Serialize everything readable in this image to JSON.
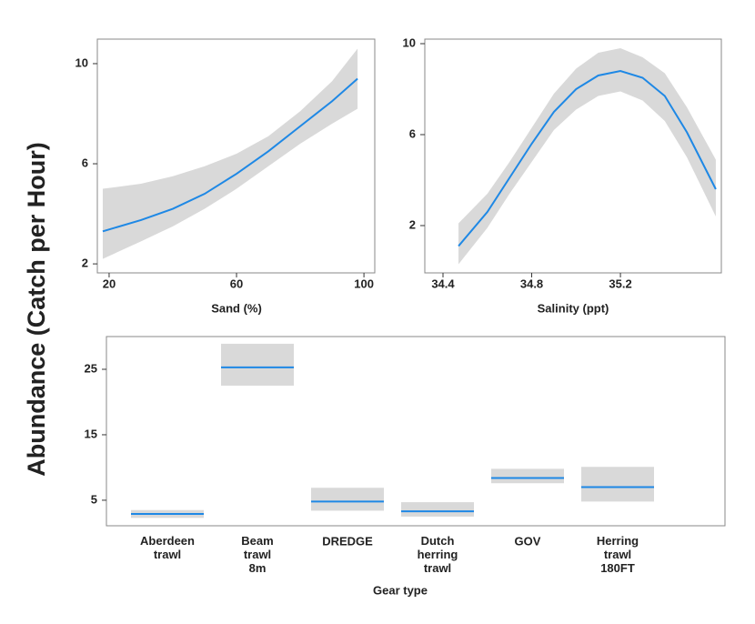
{
  "ylabel": "Abundance  (Catch per Hour)",
  "chart_data": [
    {
      "type": "line",
      "xlabel": "Sand (%)",
      "x": [
        18,
        30,
        40,
        50,
        60,
        70,
        80,
        90,
        98
      ],
      "values": [
        3.3,
        3.75,
        4.2,
        4.8,
        5.6,
        6.5,
        7.5,
        8.5,
        9.4
      ],
      "lower": [
        2.2,
        2.9,
        3.5,
        4.2,
        5.0,
        5.9,
        6.8,
        7.6,
        8.2
      ],
      "upper": [
        5.0,
        5.2,
        5.5,
        5.9,
        6.4,
        7.1,
        8.1,
        9.3,
        10.6
      ],
      "color": "#1e88e5",
      "band_color": "#d9d9d9",
      "xlim": [
        16.3,
        103.4
      ],
      "ylim": [
        1.64,
        10.98
      ],
      "xticks": [
        20,
        60,
        100
      ],
      "yticks": [
        2,
        6,
        10
      ]
    },
    {
      "type": "line",
      "xlabel": "Salinity (ppt)",
      "x": [
        34.47,
        34.6,
        34.7,
        34.8,
        34.9,
        35.0,
        35.1,
        35.2,
        35.3,
        35.4,
        35.5,
        35.63
      ],
      "values": [
        1.1,
        2.6,
        4.1,
        5.6,
        7.0,
        8.0,
        8.6,
        8.8,
        8.5,
        7.7,
        6.1,
        3.6
      ],
      "lower": [
        0.3,
        1.9,
        3.4,
        4.8,
        6.2,
        7.1,
        7.7,
        7.9,
        7.5,
        6.6,
        5.0,
        2.4
      ],
      "upper": [
        2.1,
        3.4,
        4.8,
        6.3,
        7.8,
        8.9,
        9.6,
        9.8,
        9.4,
        8.7,
        7.2,
        4.9
      ],
      "color": "#1e88e5",
      "band_color": "#d9d9d9",
      "xlim": [
        34.318,
        35.655
      ],
      "ylim": [
        -0.08,
        10.2
      ],
      "xticks": [
        34.4,
        34.8,
        35.2
      ],
      "yticks": [
        2,
        6,
        10
      ]
    },
    {
      "type": "interval",
      "xlabel": "Gear type",
      "categories": [
        "Aberdeen\ntrawl",
        "Beam\ntrawl\n8m",
        "DREDGE",
        "Dutch\nherring\ntrawl",
        "GOV",
        "Herring\ntrawl\n180FT"
      ],
      "values": [
        2.9,
        25.3,
        4.8,
        3.3,
        8.4,
        7.0
      ],
      "lower": [
        2.3,
        22.5,
        3.4,
        2.5,
        7.6,
        4.8
      ],
      "upper": [
        3.5,
        28.9,
        6.9,
        4.7,
        9.8,
        10.1
      ],
      "color": "#1e88e5",
      "band_color": "#d9d9d9",
      "ylim": [
        1.1,
        30
      ],
      "yticks": [
        5,
        15,
        25
      ]
    }
  ]
}
